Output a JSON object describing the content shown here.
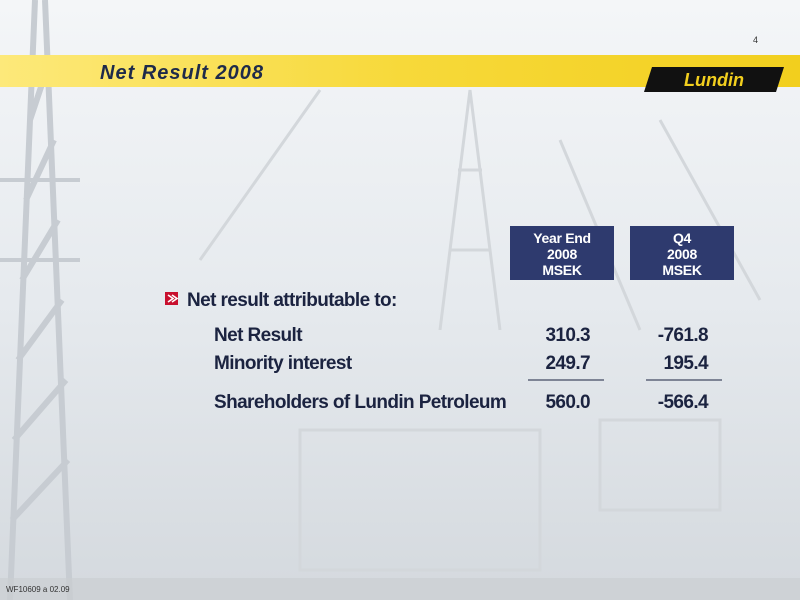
{
  "page_number": "4",
  "header": {
    "title": "Net Result 2008",
    "logo": "Lundin"
  },
  "table": {
    "columns": [
      {
        "lines": [
          "Year End",
          "2008",
          "MSEK"
        ]
      },
      {
        "lines": [
          "Q4",
          "2008",
          "MSEK"
        ]
      }
    ],
    "bullet": "Net result attributable to:",
    "rows": [
      [
        "Net Result",
        "310.3",
        "-761.8"
      ],
      [
        "Minority interest",
        "249.7",
        "195.4"
      ],
      [
        "Shareholders of Lundin Petroleum",
        "560.0",
        "-566.4"
      ]
    ]
  },
  "footer": "WF10609 a 02.09"
}
